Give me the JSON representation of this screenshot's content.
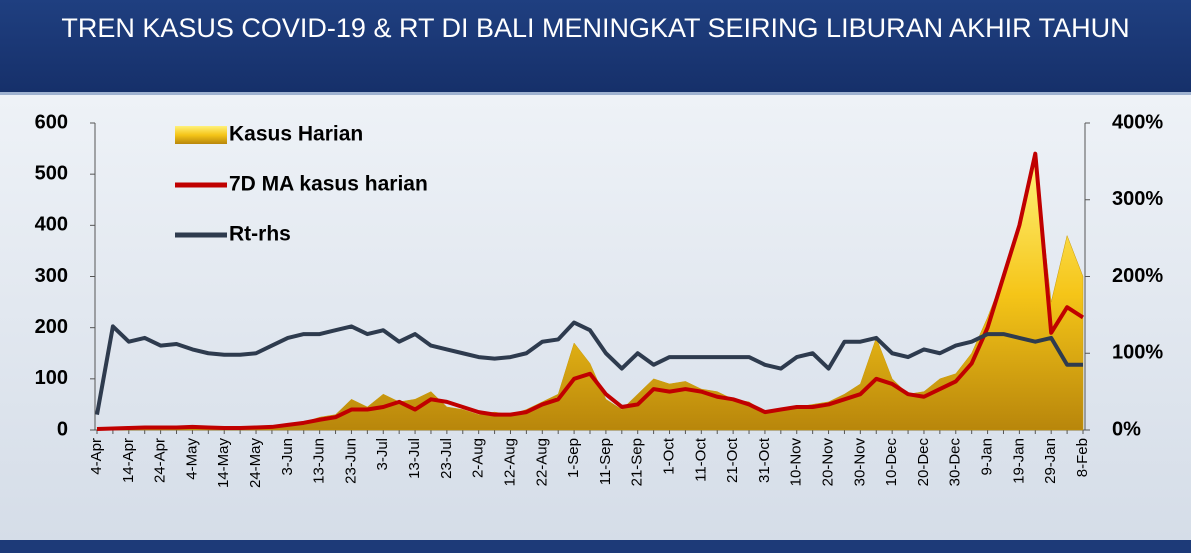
{
  "chart_data": {
    "type": "combo",
    "title": "TREN KASUS COVID-19 & RT DI BALI MENINGKAT SEIRING LIBURAN AKHIR TAHUN",
    "categories": [
      "4-Apr",
      null,
      "14-Apr",
      null,
      "24-Apr",
      null,
      "4-May",
      null,
      "14-May",
      null,
      "24-May",
      null,
      "3-Jun",
      null,
      "13-Jun",
      null,
      "23-Jun",
      null,
      "3-Jul",
      null,
      "13-Jul",
      null,
      "23-Jul",
      null,
      "2-Aug",
      null,
      "12-Aug",
      null,
      "22-Aug",
      null,
      "1-Sep",
      null,
      "11-Sep",
      null,
      "21-Sep",
      null,
      "1-Oct",
      null,
      "11-Oct",
      null,
      "21-Oct",
      null,
      "31-Oct",
      null,
      "10-Nov",
      null,
      "20-Nov",
      null,
      "30-Nov",
      null,
      "10-Dec",
      null,
      "20-Dec",
      null,
      "30-Dec",
      null,
      "9-Jan",
      null,
      "19-Jan",
      null,
      "29-Jan",
      null,
      "8-Feb"
    ],
    "series": [
      {
        "name": "Kasus Harian",
        "type": "area",
        "color": "#f5c518",
        "values": [
          2,
          3,
          5,
          4,
          6,
          5,
          5,
          6,
          3,
          5,
          6,
          8,
          10,
          15,
          25,
          30,
          60,
          45,
          70,
          55,
          60,
          75,
          45,
          40,
          30,
          35,
          30,
          40,
          55,
          70,
          170,
          130,
          60,
          40,
          70,
          100,
          90,
          95,
          80,
          75,
          60,
          55,
          35,
          40,
          45,
          50,
          55,
          70,
          90,
          180,
          100,
          70,
          75,
          100,
          110,
          150,
          220,
          300,
          400,
          530,
          250,
          380,
          300
        ]
      },
      {
        "name": "7D MA kasus harian",
        "type": "line",
        "color": "#c00000",
        "values": [
          2,
          3,
          4,
          5,
          5,
          5,
          6,
          5,
          4,
          4,
          5,
          6,
          10,
          14,
          20,
          25,
          40,
          40,
          45,
          55,
          40,
          60,
          55,
          45,
          35,
          30,
          30,
          35,
          50,
          60,
          100,
          110,
          70,
          45,
          50,
          80,
          75,
          80,
          75,
          65,
          60,
          50,
          35,
          40,
          45,
          45,
          50,
          60,
          70,
          100,
          90,
          70,
          65,
          80,
          95,
          130,
          200,
          300,
          400,
          540,
          190,
          240,
          220
        ]
      },
      {
        "name": "Rt-rhs",
        "type": "line",
        "axis": "y2",
        "color": "#2e3b4e",
        "values": [
          20,
          135,
          115,
          120,
          110,
          112,
          105,
          100,
          98,
          98,
          100,
          110,
          120,
          125,
          125,
          130,
          135,
          125,
          130,
          115,
          125,
          110,
          105,
          100,
          95,
          93,
          95,
          100,
          115,
          118,
          140,
          130,
          100,
          80,
          100,
          85,
          95,
          95,
          95,
          95,
          95,
          95,
          85,
          80,
          95,
          100,
          80,
          115,
          115,
          120,
          100,
          95,
          105,
          100,
          110,
          115,
          125,
          125,
          120,
          115,
          120,
          85,
          85
        ]
      }
    ],
    "ylim": [
      0,
      600
    ],
    "yticks": [
      0,
      100,
      200,
      300,
      400,
      500,
      600
    ],
    "y2lim": [
      0,
      400
    ],
    "y2ticks": [
      {
        "value": 0,
        "label": "0%"
      },
      {
        "value": 100,
        "label": "100%"
      },
      {
        "value": 200,
        "label": "200%"
      },
      {
        "value": 300,
        "label": "300%"
      },
      {
        "value": 400,
        "label": "400%"
      }
    ],
    "legend": "upper left"
  }
}
